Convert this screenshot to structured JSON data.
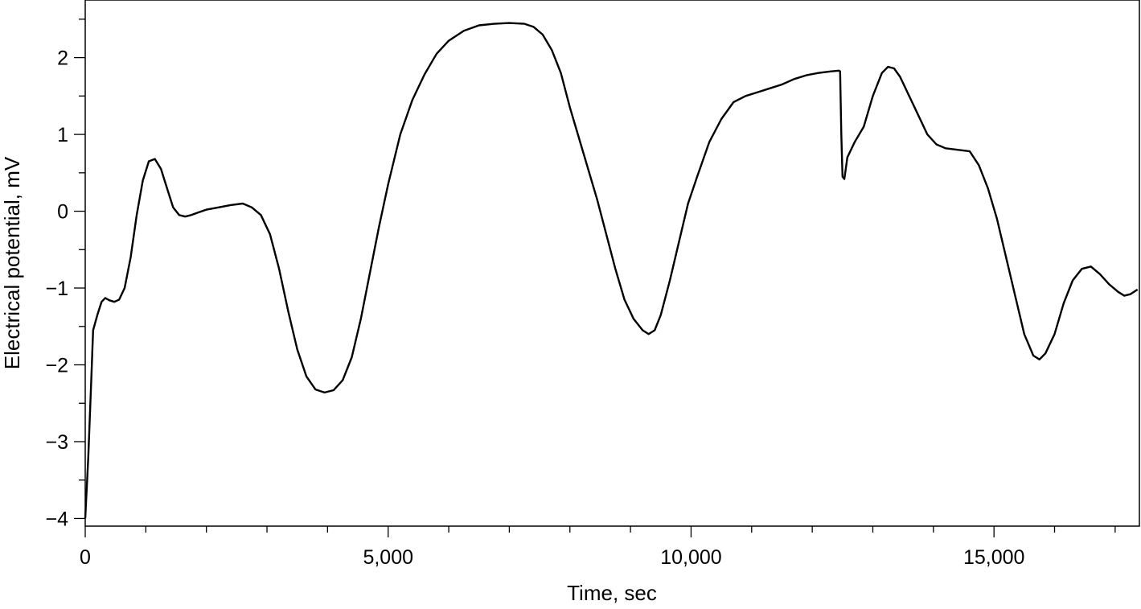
{
  "chart_data": {
    "type": "line",
    "title": "",
    "xlabel": "Time, sec",
    "ylabel": "Electrical potential, mV",
    "xlim": [
      0,
      17400
    ],
    "ylim": [
      -4.1,
      2.75
    ],
    "grid": false,
    "x_ticks": [
      {
        "value": 0,
        "label": "0"
      },
      {
        "value": 5000,
        "label": "5,000"
      },
      {
        "value": 10000,
        "label": "10,000"
      },
      {
        "value": 15000,
        "label": "15,000"
      }
    ],
    "x_minor_step": 1000,
    "y_ticks": [
      {
        "value": -4,
        "label": "−4"
      },
      {
        "value": -3,
        "label": "−3"
      },
      {
        "value": -2,
        "label": "−2"
      },
      {
        "value": -1,
        "label": "−1"
      },
      {
        "value": 0,
        "label": "0"
      },
      {
        "value": 1,
        "label": "1"
      },
      {
        "value": 2,
        "label": "2"
      }
    ],
    "y_minor_step": 0.5,
    "color": "#000000",
    "series": [
      {
        "points": [
          [
            0,
            -4.0
          ],
          [
            50,
            -3.2
          ],
          [
            100,
            -2.2
          ],
          [
            130,
            -1.55
          ],
          [
            200,
            -1.35
          ],
          [
            270,
            -1.18
          ],
          [
            330,
            -1.13
          ],
          [
            400,
            -1.16
          ],
          [
            480,
            -1.18
          ],
          [
            560,
            -1.15
          ],
          [
            650,
            -1.0
          ],
          [
            750,
            -0.6
          ],
          [
            850,
            -0.05
          ],
          [
            950,
            0.4
          ],
          [
            1050,
            0.65
          ],
          [
            1150,
            0.68
          ],
          [
            1250,
            0.55
          ],
          [
            1350,
            0.3
          ],
          [
            1450,
            0.05
          ],
          [
            1550,
            -0.05
          ],
          [
            1650,
            -0.07
          ],
          [
            1750,
            -0.05
          ],
          [
            1850,
            -0.02
          ],
          [
            2000,
            0.02
          ],
          [
            2200,
            0.05
          ],
          [
            2400,
            0.08
          ],
          [
            2600,
            0.1
          ],
          [
            2750,
            0.05
          ],
          [
            2900,
            -0.05
          ],
          [
            3050,
            -0.3
          ],
          [
            3200,
            -0.75
          ],
          [
            3350,
            -1.3
          ],
          [
            3500,
            -1.8
          ],
          [
            3650,
            -2.15
          ],
          [
            3800,
            -2.32
          ],
          [
            3950,
            -2.36
          ],
          [
            4100,
            -2.33
          ],
          [
            4250,
            -2.2
          ],
          [
            4400,
            -1.9
          ],
          [
            4550,
            -1.4
          ],
          [
            4700,
            -0.8
          ],
          [
            4850,
            -0.2
          ],
          [
            5000,
            0.35
          ],
          [
            5200,
            1.0
          ],
          [
            5400,
            1.45
          ],
          [
            5600,
            1.78
          ],
          [
            5800,
            2.05
          ],
          [
            6000,
            2.22
          ],
          [
            6250,
            2.35
          ],
          [
            6500,
            2.42
          ],
          [
            6750,
            2.44
          ],
          [
            7000,
            2.45
          ],
          [
            7250,
            2.44
          ],
          [
            7400,
            2.4
          ],
          [
            7550,
            2.3
          ],
          [
            7700,
            2.1
          ],
          [
            7850,
            1.8
          ],
          [
            8000,
            1.35
          ],
          [
            8150,
            0.95
          ],
          [
            8300,
            0.55
          ],
          [
            8450,
            0.15
          ],
          [
            8600,
            -0.3
          ],
          [
            8750,
            -0.75
          ],
          [
            8900,
            -1.15
          ],
          [
            9050,
            -1.4
          ],
          [
            9200,
            -1.55
          ],
          [
            9300,
            -1.6
          ],
          [
            9400,
            -1.55
          ],
          [
            9500,
            -1.35
          ],
          [
            9650,
            -0.9
          ],
          [
            9800,
            -0.4
          ],
          [
            9950,
            0.1
          ],
          [
            10100,
            0.45
          ],
          [
            10300,
            0.9
          ],
          [
            10500,
            1.2
          ],
          [
            10700,
            1.42
          ],
          [
            10900,
            1.5
          ],
          [
            11100,
            1.55
          ],
          [
            11300,
            1.6
          ],
          [
            11500,
            1.65
          ],
          [
            11700,
            1.72
          ],
          [
            11900,
            1.77
          ],
          [
            12100,
            1.8
          ],
          [
            12300,
            1.82
          ],
          [
            12440,
            1.83
          ],
          [
            12460,
            1.82
          ],
          [
            12480,
            1.0
          ],
          [
            12500,
            0.45
          ],
          [
            12530,
            0.42
          ],
          [
            12580,
            0.7
          ],
          [
            12700,
            0.9
          ],
          [
            12850,
            1.1
          ],
          [
            13000,
            1.5
          ],
          [
            13150,
            1.8
          ],
          [
            13250,
            1.88
          ],
          [
            13350,
            1.86
          ],
          [
            13450,
            1.75
          ],
          [
            13600,
            1.5
          ],
          [
            13750,
            1.25
          ],
          [
            13900,
            1.0
          ],
          [
            14050,
            0.87
          ],
          [
            14200,
            0.82
          ],
          [
            14400,
            0.8
          ],
          [
            14600,
            0.78
          ],
          [
            14750,
            0.6
          ],
          [
            14900,
            0.3
          ],
          [
            15050,
            -0.1
          ],
          [
            15200,
            -0.6
          ],
          [
            15350,
            -1.1
          ],
          [
            15500,
            -1.6
          ],
          [
            15650,
            -1.88
          ],
          [
            15750,
            -1.93
          ],
          [
            15850,
            -1.85
          ],
          [
            16000,
            -1.6
          ],
          [
            16150,
            -1.2
          ],
          [
            16300,
            -0.9
          ],
          [
            16450,
            -0.75
          ],
          [
            16600,
            -0.72
          ],
          [
            16750,
            -0.82
          ],
          [
            16900,
            -0.95
          ],
          [
            17050,
            -1.05
          ],
          [
            17150,
            -1.1
          ],
          [
            17250,
            -1.08
          ],
          [
            17370,
            -1.02
          ]
        ]
      }
    ]
  }
}
